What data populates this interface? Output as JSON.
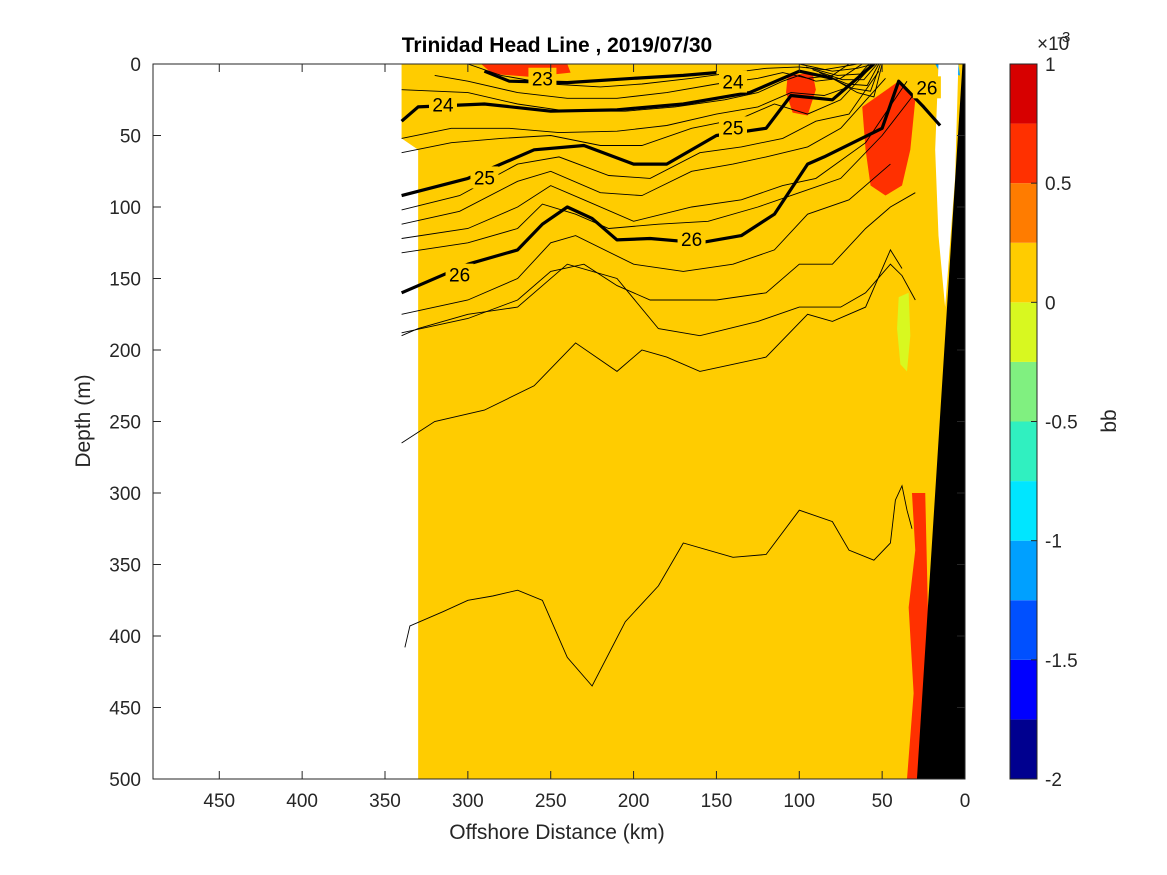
{
  "chart_data": {
    "type": "heatmap",
    "subtype": "filled contour section plot",
    "title": "Trinidad Head Line , 2019/07/30",
    "xlabel": "Offshore Distance (km)",
    "ylabel": "Depth (m)",
    "xlim": [
      490,
      0
    ],
    "x_reversed": true,
    "ylim": [
      0,
      500
    ],
    "y_reversed": true,
    "x_ticks": [
      450,
      400,
      350,
      300,
      250,
      200,
      150,
      100,
      50,
      0
    ],
    "y_ticks": [
      0,
      50,
      100,
      150,
      200,
      250,
      300,
      350,
      400,
      450,
      500
    ],
    "grid": false,
    "colorbar": {
      "label": "bb",
      "multiplier": "×10",
      "exponent": "-3",
      "range": [
        -2,
        1
      ],
      "ticks": [
        1,
        0.5,
        0,
        -0.5,
        -1,
        -1.5,
        -2
      ],
      "tick_labels": [
        "1",
        "0.5",
        "0",
        "-0.5",
        "-1",
        "-1.5",
        "-2"
      ],
      "levels": [
        -2,
        -1.75,
        -1.5,
        -1.25,
        -1,
        -0.75,
        -0.5,
        -0.25,
        0,
        0.25,
        0.5,
        0.75,
        1
      ],
      "colors": [
        "#00008f",
        "#0000ff",
        "#0050ff",
        "#00a0ff",
        "#00e6ff",
        "#30f0c0",
        "#80f080",
        "#d8f820",
        "#ffcc00",
        "#ff7c00",
        "#ff3000",
        "#d70000"
      ]
    },
    "field": {
      "background_value": 0.12,
      "data_extent_x": [
        330,
        0
      ],
      "patches": [
        {
          "value": 0.5,
          "description": "orange near surface",
          "x": [
            290,
            240
          ],
          "y": [
            0,
            8
          ]
        },
        {
          "value": 0.5,
          "description": "orange near shelf",
          "x": [
            105,
            95
          ],
          "y": [
            10,
            35
          ]
        },
        {
          "value": 0.5,
          "description": "orange nearshore",
          "x": [
            60,
            35
          ],
          "y": [
            35,
            90
          ]
        },
        {
          "value": -1.2,
          "description": "blue surface nearshore",
          "x": [
            15,
            5
          ],
          "y": [
            0,
            8
          ]
        },
        {
          "value": -0.2,
          "description": "yellow-green streak",
          "x": [
            40,
            32
          ],
          "y": [
            165,
            215
          ]
        },
        {
          "value": 0.6,
          "description": "orange bottom boundary",
          "x": [
            30,
            20
          ],
          "y": [
            300,
            500
          ]
        }
      ]
    },
    "contours": {
      "bold_levels": [
        {
          "label": "23",
          "x": [
            290,
            275,
            240,
            200,
            170,
            150
          ],
          "y": [
            5,
            12,
            13,
            10,
            8,
            6
          ]
        },
        {
          "label": "24",
          "x": [
            340,
            330,
            290,
            250,
            210,
            170,
            130,
            100,
            80
          ],
          "y": [
            40,
            30,
            28,
            33,
            32,
            28,
            20,
            5,
            10
          ]
        },
        {
          "label": "25",
          "x": [
            340,
            300,
            260,
            230,
            200,
            180,
            150,
            120,
            105,
            80,
            65,
            55
          ],
          "y": [
            92,
            80,
            60,
            57,
            70,
            70,
            50,
            45,
            22,
            25,
            10,
            0
          ]
        },
        {
          "label": "26",
          "x": [
            340,
            300,
            270,
            255,
            240,
            225,
            210,
            190,
            160,
            135,
            115,
            95,
            85,
            50,
            40,
            25,
            15
          ],
          "y": [
            160,
            140,
            130,
            112,
            100,
            108,
            123,
            122,
            125,
            120,
            105,
            70,
            65,
            45,
            12,
            30,
            43
          ]
        }
      ],
      "thin_levels": 18
    },
    "land_mask": {
      "color": "#000000",
      "description": "shelf/slope bottom"
    }
  }
}
